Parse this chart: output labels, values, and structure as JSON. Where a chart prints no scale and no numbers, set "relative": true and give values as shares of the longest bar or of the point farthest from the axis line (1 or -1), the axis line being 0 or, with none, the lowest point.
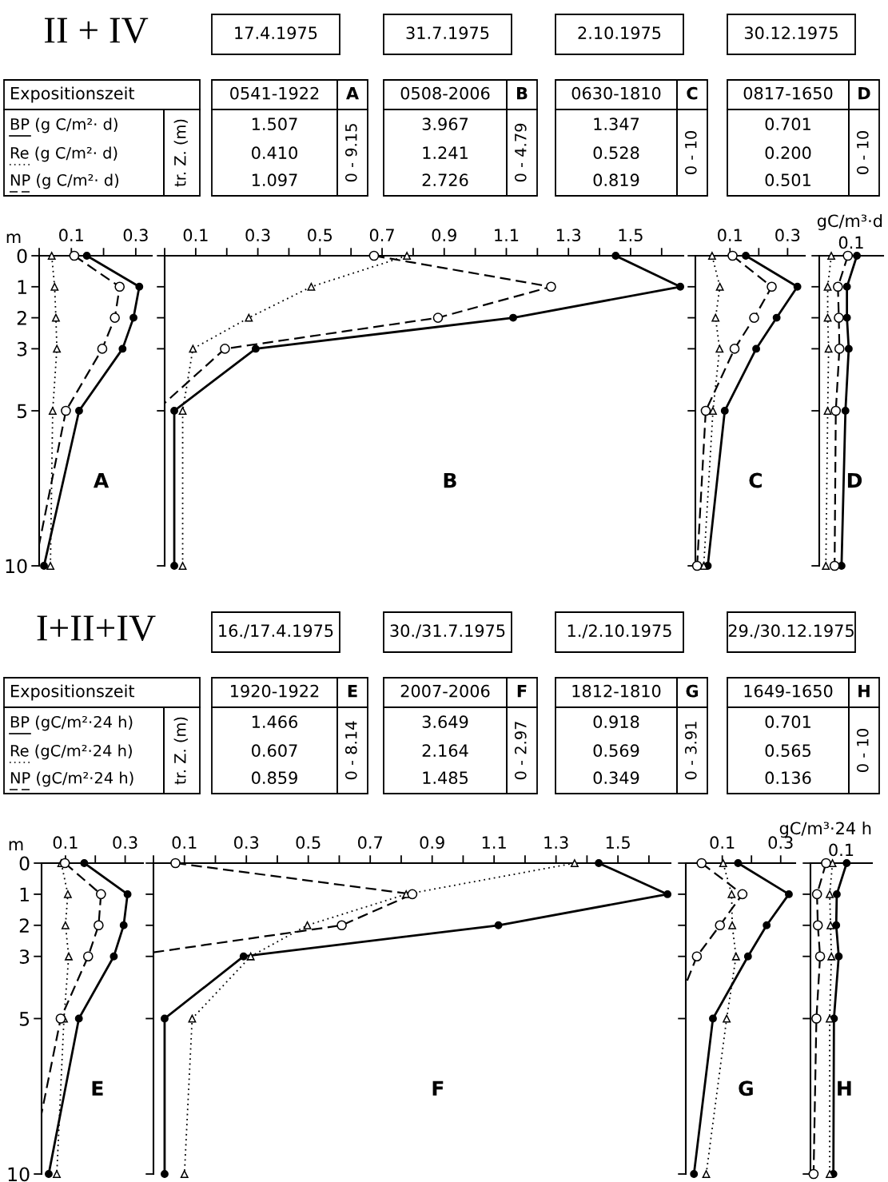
{
  "chart_data": [
    {
      "type": "other",
      "title": "II + IV",
      "annotations": [
        "17.4.1975",
        "31.7.1975",
        "2.10.1975",
        "30.12.1975",
        "Expositionszeit",
        "BP (g C/m²· d)",
        "Re (g C/m²· d)",
        "NP (g C/m²· d)",
        "tr. Z. (m)",
        "0541-1922",
        "A",
        "1.507",
        "0.410",
        "1.097",
        "0 - 9.15",
        "0508-2006",
        "B",
        "3.967",
        "1.241",
        "2.726",
        "0 - 4.79",
        "0630-1810",
        "C",
        "1.347",
        "0.528",
        "0.819",
        "0 - 10",
        "0817-1650",
        "D",
        "0.701",
        "0.200",
        "0.501",
        "0 - 10"
      ]
    },
    {
      "type": "line",
      "orientation": "horizontal",
      "ylabel": "m",
      "annotations": [
        "A"
      ],
      "xlim": [
        0,
        0.35
      ],
      "xticks": [
        {
          "value": 0,
          "label": null
        },
        0.1,
        {
          "value": 0.2,
          "label": null
        },
        0.3
      ],
      "ylim": [
        10,
        0
      ],
      "yticks": [
        0,
        1,
        2,
        3,
        5,
        10
      ],
      "series": [
        {
          "color": "#000000",
          "marker": "circle",
          "line_style": "solid",
          "x": [
            0,
            1,
            2,
            3,
            5,
            10
          ],
          "values": [
            0.148,
            0.311,
            0.293,
            0.259,
            0.124,
            0.015
          ]
        },
        {
          "color": "#000000",
          "marker": "triangle",
          "line_style": "dotted",
          "x": [
            0,
            1,
            2,
            3,
            5,
            10
          ],
          "values": [
            0.039,
            0.048,
            0.052,
            0.055,
            0.042,
            0.035
          ]
        },
        {
          "color": "#000000",
          "marker": "circle",
          "line_style": "dashed",
          "x": [
            0,
            1,
            2,
            3,
            5,
            9.3
          ],
          "values": [
            0.109,
            0.25,
            0.235,
            0.196,
            0.083,
            0
          ]
        }
      ]
    },
    {
      "type": "line",
      "orientation": "horizontal",
      "tick_labels": "x",
      "annotations": [
        "B"
      ],
      "xlim": [
        0,
        1.67
      ],
      "xticks": [
        {
          "value": 0,
          "label": null
        },
        0.1,
        {
          "value": 0.2,
          "label": null
        },
        0.3,
        {
          "value": 0.4,
          "label": null
        },
        0.5,
        {
          "value": 0.6,
          "label": null
        },
        0.7,
        {
          "value": 0.8,
          "label": null
        },
        0.9,
        {
          "value": 1.0,
          "label": null
        },
        1.1,
        {
          "value": 1.2,
          "label": null
        },
        1.3,
        {
          "value": 1.4,
          "label": null
        },
        1.5,
        {
          "value": 1.6,
          "label": null
        }
      ],
      "ylim": [
        10,
        0
      ],
      "yticks": [
        0,
        1,
        2,
        3,
        5,
        10
      ],
      "series": [
        {
          "color": "#000000",
          "marker": "circle",
          "line_style": "solid",
          "x": [
            0,
            1,
            2,
            3,
            5,
            10
          ],
          "values": [
            1.452,
            1.66,
            1.122,
            0.293,
            0.031,
            0.031
          ]
        },
        {
          "color": "#000000",
          "marker": "triangle",
          "line_style": "dotted",
          "x": [
            0,
            1,
            2,
            3,
            5,
            10
          ],
          "values": [
            0.78,
            0.472,
            0.271,
            0.091,
            0.058,
            0.058
          ]
        },
        {
          "color": "#000000",
          "marker": "circle",
          "line_style": "dashed",
          "x": [
            0,
            1,
            2,
            3,
            4.75
          ],
          "values": [
            0.674,
            1.244,
            0.88,
            0.194,
            0
          ]
        }
      ]
    },
    {
      "type": "line",
      "orientation": "horizontal",
      "tick_labels": "x",
      "annotations": [
        "C"
      ],
      "xlim": [
        -0.02,
        0.36
      ],
      "xticks": [
        0.1,
        {
          "value": 0.2,
          "label": null
        },
        0.3
      ],
      "ylim": [
        10,
        0
      ],
      "yticks": [
        0,
        1,
        2,
        3,
        5,
        10
      ],
      "series": [
        {
          "color": "#000000",
          "marker": "circle",
          "line_style": "solid",
          "x": [
            0,
            1,
            2,
            3,
            5,
            10
          ],
          "values": [
            0.155,
            0.334,
            0.262,
            0.191,
            0.082,
            0.023
          ]
        },
        {
          "color": "#000000",
          "marker": "triangle",
          "line_style": "dotted",
          "x": [
            0,
            1,
            2,
            3,
            5,
            10
          ],
          "values": [
            0.038,
            0.065,
            0.05,
            0.064,
            0.041,
            0.009
          ]
        },
        {
          "color": "#000000",
          "marker": "circle",
          "line_style": "dashed",
          "x": [
            0,
            1,
            2,
            3,
            5,
            10
          ],
          "values": [
            0.109,
            0.245,
            0.184,
            0.116,
            0.016,
            -0.014
          ]
        }
      ]
    },
    {
      "type": "line",
      "orientation": "horizontal",
      "relative": true,
      "tick_labels": "x",
      "xlabel": "gC/m³·d",
      "annotations": [
        "D",
        "0.1"
      ],
      "ylim": [
        10,
        0
      ],
      "yticks": [
        0,
        1,
        2,
        3,
        5,
        10
      ],
      "series": [
        {
          "color": "#000000",
          "marker": "circle",
          "line_style": "solid",
          "x": [
            0,
            1,
            2,
            3,
            5,
            10
          ],
          "values": [
            1,
            0.736,
            0.736,
            0.784,
            0.696,
            0.592
          ]
        },
        {
          "color": "#000000",
          "marker": "triangle",
          "line_style": "dotted",
          "x": [
            0,
            1,
            2,
            3,
            5,
            10
          ],
          "values": [
            0.32,
            0.224,
            0.224,
            0.248,
            0.224,
            0.176
          ]
        },
        {
          "color": "#000000",
          "marker": "circle",
          "line_style": "dashed",
          "x": [
            0,
            1,
            2,
            3,
            5,
            10
          ],
          "values": [
            0.76,
            0.496,
            0.52,
            0.536,
            0.44,
            0.408
          ]
        }
      ]
    },
    {
      "type": "other",
      "title": "I+II+IV",
      "annotations": [
        "16./17.4.1975",
        "30./31.7.1975",
        "1./2.10.1975",
        "29./30.12.1975",
        "Expositionszeit",
        "BP (gC/m²·24 h)",
        "Re (gC/m²·24 h)",
        "NP (gC/m²·24 h)",
        "tr. Z. (m)",
        "1920-1922",
        "E",
        "1.466",
        "0.607",
        "0.859",
        "0 - 8.14",
        "2007-2006",
        "F",
        "3.649",
        "2.164",
        "1.485",
        "0 - 2.97",
        "1812-1810",
        "G",
        "0.918",
        "0.569",
        "0.349",
        "0 - 3.91",
        "1649-1650",
        "H",
        "0.701",
        "0.565",
        "0.136",
        "0 - 10"
      ]
    },
    {
      "type": "line",
      "orientation": "horizontal",
      "ylabel": "m",
      "annotations": [
        "E"
      ],
      "xlim": [
        0.02,
        0.36
      ],
      "xticks": [
        0.1,
        {
          "value": 0.2,
          "label": null
        },
        0.3
      ],
      "ylim": [
        10,
        0
      ],
      "yticks": [
        0,
        1,
        2,
        3,
        5,
        10
      ],
      "series": [
        {
          "color": "#000000",
          "marker": "circle",
          "line_style": "solid",
          "x": [
            0,
            1,
            2,
            3,
            5,
            10
          ],
          "values": [
            0.163,
            0.308,
            0.295,
            0.262,
            0.145,
            0.044
          ]
        },
        {
          "color": "#000000",
          "marker": "triangle",
          "line_style": "dotted",
          "x": [
            0,
            1,
            2,
            3,
            5,
            10
          ],
          "values": [
            0.086,
            0.108,
            0.1,
            0.111,
            0.095,
            0.071
          ]
        },
        {
          "color": "#000000",
          "marker": "circle",
          "line_style": "dashed",
          "x": [
            0,
            1,
            2,
            3,
            5,
            8.05
          ],
          "values": [
            0.098,
            0.219,
            0.211,
            0.176,
            0.084,
            0.02
          ]
        }
      ]
    },
    {
      "type": "line",
      "orientation": "horizontal",
      "tick_labels": "x",
      "annotations": [
        "F"
      ],
      "xlim": [
        0,
        1.67
      ],
      "xticks": [
        {
          "value": 0,
          "label": null
        },
        0.1,
        {
          "value": 0.2,
          "label": null
        },
        0.3,
        {
          "value": 0.4,
          "label": null
        },
        0.5,
        {
          "value": 0.6,
          "label": null
        },
        0.7,
        {
          "value": 0.8,
          "label": null
        },
        0.9,
        {
          "value": 1.0,
          "label": null
        },
        1.1,
        {
          "value": 1.2,
          "label": null
        },
        1.3,
        {
          "value": 1.4,
          "label": null
        },
        1.5,
        {
          "value": 1.6,
          "label": null
        }
      ],
      "ylim": [
        10,
        0
      ],
      "yticks": [
        0,
        1,
        2,
        3,
        5,
        10
      ],
      "series": [
        {
          "color": "#000000",
          "marker": "circle",
          "line_style": "solid",
          "x": [
            0,
            1,
            2,
            3,
            5,
            10
          ],
          "values": [
            1.438,
            1.66,
            1.114,
            0.291,
            0.036,
            0.036
          ]
        },
        {
          "color": "#000000",
          "marker": "triangle",
          "line_style": "dotted",
          "x": [
            0,
            1,
            2,
            3,
            5,
            10
          ],
          "values": [
            1.36,
            0.816,
            0.497,
            0.314,
            0.125,
            0.1
          ]
        },
        {
          "color": "#000000",
          "marker": "circle",
          "line_style": "dashed",
          "x": [
            0,
            1,
            2,
            2.87
          ],
          "values": [
            0.071,
            0.836,
            0.608,
            0
          ]
        }
      ]
    },
    {
      "type": "line",
      "orientation": "horizontal",
      "tick_labels": "x",
      "annotations": [
        "G"
      ],
      "xlim": [
        -0.025,
        0.35
      ],
      "xticks": [
        0.1,
        {
          "value": 0.2,
          "label": null
        },
        0.3
      ],
      "ylim": [
        10,
        0
      ],
      "yticks": [
        0,
        1,
        2,
        3,
        5,
        10
      ],
      "series": [
        {
          "color": "#000000",
          "marker": "circle",
          "line_style": "solid",
          "x": [
            0,
            1,
            2,
            3,
            5,
            10
          ],
          "values": [
            0.154,
            0.328,
            0.252,
            0.188,
            0.068,
            0.003
          ]
        },
        {
          "color": "#000000",
          "marker": "triangle",
          "line_style": "dotted",
          "x": [
            0,
            1,
            2,
            3,
            5,
            10
          ],
          "values": [
            0.103,
            0.132,
            0.134,
            0.147,
            0.115,
            0.045
          ]
        },
        {
          "color": "#000000",
          "marker": "circle",
          "line_style": "dashed",
          "x": [
            0,
            1,
            2,
            3,
            3.89
          ],
          "values": [
            0.029,
            0.169,
            0.092,
            0.013,
            -0.025
          ]
        }
      ]
    },
    {
      "type": "line",
      "orientation": "horizontal",
      "relative": true,
      "tick_labels": "x",
      "xlabel": "gC/m³·24 h",
      "annotations": [
        "H",
        "0.1"
      ],
      "ylim": [
        10,
        0
      ],
      "yticks": [
        0,
        1,
        2,
        3,
        5,
        10
      ],
      "series": [
        {
          "color": "#000000",
          "marker": "circle",
          "line_style": "solid",
          "x": [
            0,
            1,
            2,
            3,
            5,
            10
          ],
          "values": [
            1,
            0.727,
            0.711,
            0.781,
            0.648,
            0.633
          ]
        },
        {
          "color": "#000000",
          "marker": "triangle",
          "line_style": "dotted",
          "x": [
            0,
            1,
            2,
            3,
            5,
            10
          ],
          "values": [
            0.609,
            0.531,
            0.555,
            0.578,
            0.531,
            0.531
          ]
        },
        {
          "color": "#000000",
          "marker": "circle",
          "line_style": "dashed",
          "x": [
            0,
            1,
            2,
            3,
            5,
            10
          ],
          "values": [
            0.43,
            0.18,
            0.203,
            0.266,
            0.164,
            0.086
          ]
        }
      ]
    }
  ]
}
